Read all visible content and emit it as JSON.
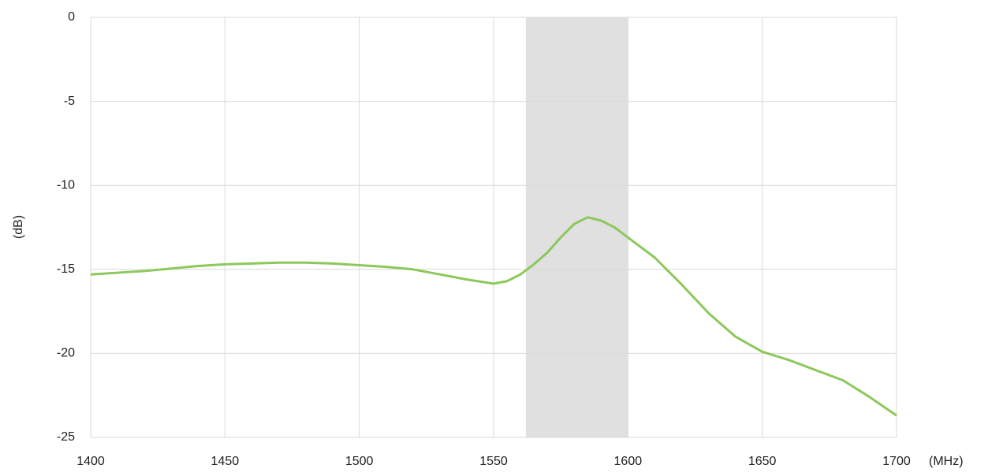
{
  "chart_data": {
    "type": "line",
    "x_label": "(MHz)",
    "y_label": "(dB)",
    "x": [
      1400,
      1410,
      1420,
      1430,
      1440,
      1450,
      1460,
      1470,
      1480,
      1490,
      1500,
      1510,
      1520,
      1530,
      1540,
      1550,
      1555,
      1560,
      1565,
      1570,
      1575,
      1580,
      1585,
      1590,
      1595,
      1600,
      1610,
      1620,
      1630,
      1640,
      1650,
      1660,
      1670,
      1680,
      1690,
      1700
    ],
    "series": [
      {
        "color": "#8cc85a",
        "values": [
          -15.3,
          -15.2,
          -15.1,
          -14.95,
          -14.8,
          -14.7,
          -14.65,
          -14.6,
          -14.6,
          -14.65,
          -14.75,
          -14.85,
          -15.0,
          -15.3,
          -15.6,
          -15.85,
          -15.7,
          -15.3,
          -14.7,
          -14.0,
          -13.1,
          -12.3,
          -11.9,
          -12.1,
          -12.5,
          -13.1,
          -14.3,
          -15.9,
          -17.6,
          -19.0,
          -19.9,
          -20.4,
          -21.0,
          -21.6,
          -22.6,
          -23.7
        ]
      }
    ],
    "shaded_band": [
      1562,
      1600
    ],
    "shaded_color": "#e0e0e0",
    "xlim": [
      1400,
      1700
    ],
    "xticks": [
      1400,
      1450,
      1500,
      1550,
      1600,
      1650,
      1700
    ],
    "ylim": [
      -25,
      0
    ],
    "yticks": [
      -25,
      -20,
      -15,
      -10,
      -5,
      0
    ],
    "grid": true
  }
}
